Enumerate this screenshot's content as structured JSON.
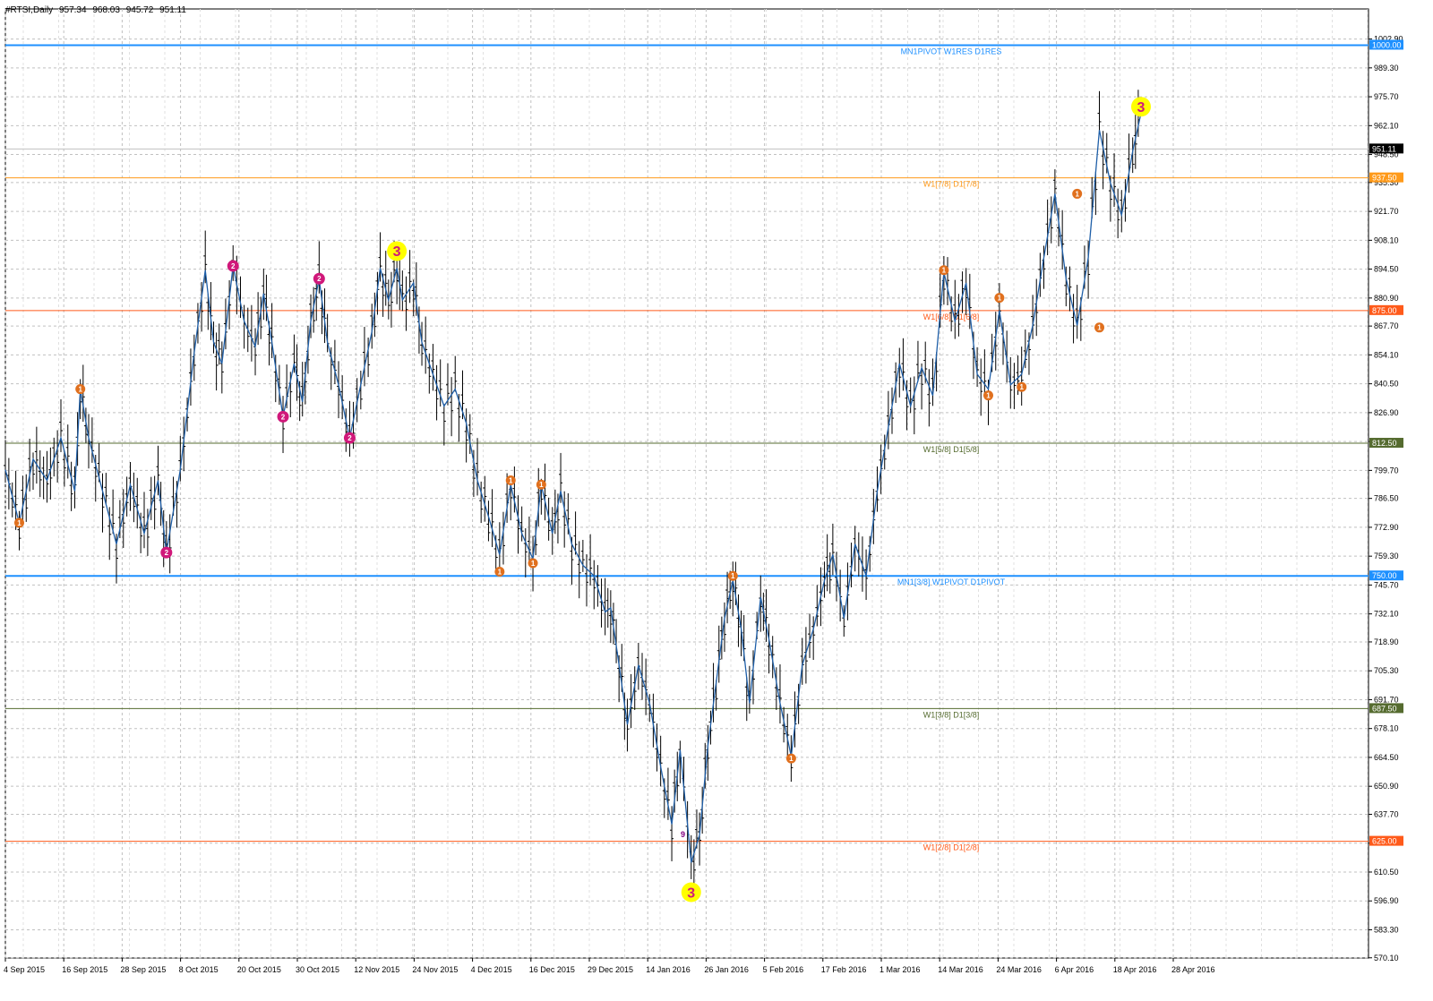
{
  "header": {
    "symbol": "#RTSI,Daily",
    "open": "957.34",
    "high": "968.03",
    "low": "945.72",
    "close": "951.11"
  },
  "colors": {
    "price_line": "#1f5fa8",
    "bar": "#000000",
    "grid": "#c0c0c0",
    "blue_level": "#1e90ff",
    "orange_level": "#ff8c00",
    "red_level": "#ff5a1a",
    "green_level": "#556b2f",
    "magenta_marker": "#d0187a",
    "orange_marker": "#e0701e",
    "yellow_marker": "#ffff00",
    "current_price_box": "#000000"
  },
  "chart_data": {
    "type": "line",
    "ylim": [
      570,
      1012
    ],
    "y_ticks": [
      "1002.90",
      "989.30",
      "975.70",
      "962.10",
      "948.50",
      "935.30",
      "921.70",
      "908.10",
      "894.50",
      "880.90",
      "867.70",
      "854.10",
      "840.50",
      "826.90",
      "813.30",
      "799.70",
      "786.50",
      "772.90",
      "759.30",
      "745.70",
      "732.10",
      "718.90",
      "705.30",
      "691.70",
      "678.10",
      "664.50",
      "650.90",
      "637.70",
      "624.10",
      "610.50",
      "596.90",
      "583.30",
      "570.10"
    ],
    "x_labels": [
      "4 Sep 2015",
      "16 Sep 2015",
      "28 Sep 2015",
      "8 Oct 2015",
      "20 Oct 2015",
      "30 Oct 2015",
      "12 Nov 2015",
      "24 Nov 2015",
      "4 Dec 2015",
      "16 Dec 2015",
      "29 Dec 2015",
      "14 Jan 2016",
      "26 Jan 2016",
      "5 Feb 2016",
      "17 Feb 2016",
      "1 Mar 2016",
      "14 Mar 2016",
      "24 Mar 2016",
      "6 Apr 2016",
      "18 Apr 2016",
      "28 Apr 2016"
    ],
    "levels": [
      {
        "value": 1000.0,
        "label": "MN1PIVOT W1RES D1RES",
        "tag": "1000.00",
        "color": "#1e90ff"
      },
      {
        "value": 937.5,
        "label": "W1[7/8] D1[7/8]",
        "tag": "937.50",
        "color": "#ff9a1a"
      },
      {
        "value": 875.0,
        "label": "W1[6/8] D1[6/8]",
        "tag": "875.00",
        "color": "#ff5a1a"
      },
      {
        "value": 812.5,
        "label": "W1[5/8] D1[5/8]",
        "tag": "812.50",
        "color": "#556b2f"
      },
      {
        "value": 750.0,
        "label": "MN1[3/8] W1PIVOT D1PIVOT",
        "tag": "750.00",
        "color": "#1e90ff"
      },
      {
        "value": 687.5,
        "label": "W1[3/8] D1[3/8]",
        "tag": "687.50",
        "color": "#556b2f"
      },
      {
        "value": 625.0,
        "label": "W1[2/8] D1[2/8]",
        "tag": "625.00",
        "color": "#ff5a1a"
      }
    ],
    "current_price": {
      "value": 951.11,
      "tag": "951.11"
    },
    "x_count": 170,
    "series": [
      {
        "values": [
          [
            0,
            800
          ],
          [
            5,
            775
          ],
          [
            10,
            805
          ],
          [
            15,
            795
          ],
          [
            20,
            815
          ],
          [
            25,
            790
          ],
          [
            27,
            838
          ],
          [
            30,
            815
          ],
          [
            35,
            790
          ],
          [
            40,
            765
          ],
          [
            45,
            793
          ],
          [
            50,
            770
          ],
          [
            55,
            795
          ],
          [
            58,
            761
          ],
          [
            63,
            800
          ],
          [
            68,
            855
          ],
          [
            72,
            894
          ],
          [
            75,
            860
          ],
          [
            78,
            850
          ],
          [
            82,
            896
          ],
          [
            86,
            870
          ],
          [
            90,
            858
          ],
          [
            93,
            883
          ],
          [
            96,
            860
          ],
          [
            100,
            825
          ],
          [
            104,
            850
          ],
          [
            107,
            832
          ],
          [
            110,
            870
          ],
          [
            113,
            890
          ],
          [
            116,
            860
          ],
          [
            120,
            840
          ],
          [
            124,
            815
          ],
          [
            128,
            840
          ],
          [
            132,
            865
          ],
          [
            135,
            895
          ],
          [
            138,
            880
          ],
          [
            141,
            895
          ],
          [
            143,
            880
          ],
          [
            147,
            888
          ],
          [
            150,
            860
          ],
          [
            154,
            845
          ],
          [
            158,
            830
          ],
          [
            162,
            838
          ],
          [
            166,
            822
          ],
          [
            170,
            795
          ],
          [
            174,
            778
          ],
          [
            178,
            760
          ],
          [
            182,
            793
          ],
          [
            186,
            770
          ],
          [
            190,
            758
          ],
          [
            193,
            793
          ],
          [
            197,
            770
          ],
          [
            200,
            790
          ],
          [
            204,
            765
          ],
          [
            208,
            755
          ],
          [
            212,
            750
          ],
          [
            216,
            733
          ],
          [
            218,
            735
          ],
          [
            221,
            708
          ],
          [
            224,
            680
          ],
          [
            228,
            708
          ],
          [
            232,
            690
          ],
          [
            236,
            660
          ],
          [
            240,
            633
          ],
          [
            243,
            668
          ],
          [
            247,
            615
          ],
          [
            250,
            628
          ],
          [
            253,
            670
          ],
          [
            256,
            700
          ],
          [
            259,
            730
          ],
          [
            262,
            748
          ],
          [
            265,
            725
          ],
          [
            268,
            690
          ],
          [
            272,
            740
          ],
          [
            275,
            720
          ],
          [
            279,
            690
          ],
          [
            283,
            665
          ],
          [
            287,
            708
          ],
          [
            291,
            725
          ],
          [
            295,
            748
          ],
          [
            298,
            760
          ],
          [
            302,
            730
          ],
          [
            306,
            765
          ],
          [
            310,
            750
          ],
          [
            314,
            790
          ],
          [
            318,
            820
          ],
          [
            322,
            850
          ],
          [
            326,
            830
          ],
          [
            330,
            848
          ],
          [
            334,
            835
          ],
          [
            338,
            893
          ],
          [
            342,
            870
          ],
          [
            346,
            888
          ],
          [
            350,
            845
          ],
          [
            354,
            838
          ],
          [
            358,
            875
          ],
          [
            362,
            840
          ],
          [
            366,
            845
          ],
          [
            370,
            868
          ],
          [
            374,
            900
          ],
          [
            378,
            930
          ],
          [
            382,
            890
          ],
          [
            386,
            868
          ],
          [
            390,
            900
          ],
          [
            394,
            960
          ],
          [
            398,
            935
          ],
          [
            402,
            920
          ],
          [
            406,
            950
          ],
          [
            409,
            968
          ]
        ]
      }
    ]
  },
  "markers": [
    {
      "type": "orange",
      "text": "1",
      "x": 5,
      "y": 775
    },
    {
      "type": "orange",
      "text": "1",
      "x": 27,
      "y": 838
    },
    {
      "type": "magenta",
      "text": "2",
      "x": 58,
      "y": 761
    },
    {
      "type": "magenta",
      "text": "2",
      "x": 82,
      "y": 896
    },
    {
      "type": "magenta",
      "text": "2",
      "x": 100,
      "y": 825
    },
    {
      "type": "magenta",
      "text": "2",
      "x": 113,
      "y": 890
    },
    {
      "type": "magenta",
      "text": "2",
      "x": 124,
      "y": 815
    },
    {
      "type": "yellow",
      "text": "3",
      "x": 141,
      "y": 903
    },
    {
      "type": "orange",
      "text": "1",
      "x": 178,
      "y": 752
    },
    {
      "type": "orange",
      "text": "1",
      "x": 182,
      "y": 795
    },
    {
      "type": "orange",
      "text": "1",
      "x": 190,
      "y": 756
    },
    {
      "type": "orange",
      "text": "1",
      "x": 193,
      "y": 793
    },
    {
      "type": "yellow",
      "text": "3",
      "x": 247,
      "y": 601
    },
    {
      "type": "orange",
      "text": "1",
      "x": 262,
      "y": 750
    },
    {
      "type": "orange",
      "text": "1",
      "x": 283,
      "y": 664
    },
    {
      "type": "orange",
      "text": "1",
      "x": 338,
      "y": 894
    },
    {
      "type": "orange",
      "text": "1",
      "x": 354,
      "y": 835
    },
    {
      "type": "orange",
      "text": "1",
      "x": 358,
      "y": 881
    },
    {
      "type": "orange",
      "text": "1",
      "x": 366,
      "y": 839
    },
    {
      "type": "orange",
      "text": "1",
      "x": 386,
      "y": 930
    },
    {
      "type": "orange",
      "text": "1",
      "x": 394,
      "y": 867
    },
    {
      "type": "yellow",
      "text": "3",
      "x": 409,
      "y": 971
    }
  ],
  "nine_label": {
    "text": "9",
    "x": 244,
    "y": 627
  }
}
